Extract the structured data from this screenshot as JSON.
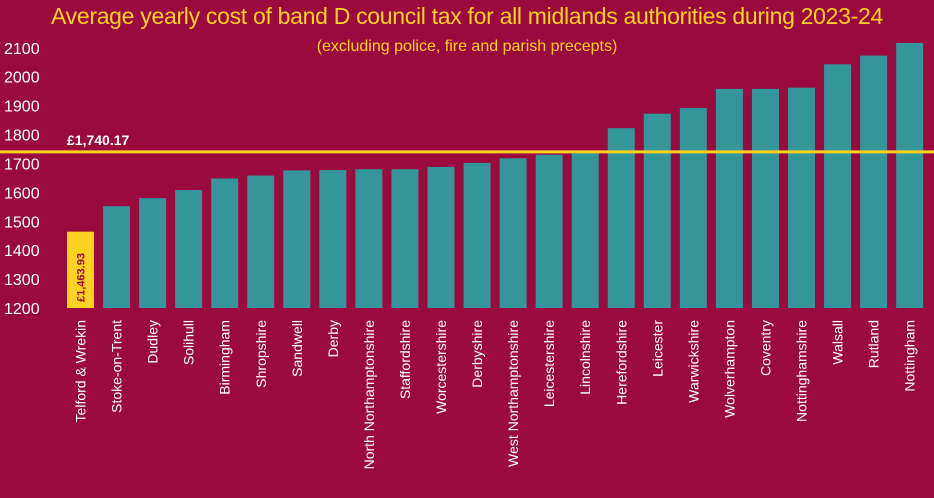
{
  "colors": {
    "background": "#9b0a3e",
    "bar": "#34959a",
    "highlight_bar": "#ffd21f",
    "average_line": "#ffd21f",
    "title": "#ffd21f",
    "text": "#ffffff"
  },
  "chart_data": {
    "type": "bar",
    "title": "Average yearly cost of band D council tax for all midlands authorities during 2023-24",
    "subtitle": "(excluding police, fire and parish precepts)",
    "xlabel": "",
    "ylabel": "",
    "ylim": [
      1200,
      2120
    ],
    "yticks": [
      1200,
      1300,
      1400,
      1500,
      1600,
      1700,
      1800,
      1900,
      2000,
      2100
    ],
    "grid": false,
    "categories": [
      "Telford & Wrekin",
      "Stoke-on-Trent",
      "Dudley",
      "Solihull",
      "Birmingham",
      "Shropshire",
      "Sandwell",
      "Derby",
      "North Northamptonshire",
      "Staffordshire",
      "Worcestershire",
      "Derbyshire",
      "West Northamptonshire",
      "Leicestershire",
      "Lincolnshire",
      "Herefordshire",
      "Leicester",
      "Warwickshire",
      "Wolverhampton",
      "Coventry",
      "Nottinghamshire",
      "Walsall",
      "Rutland",
      "Nottingham"
    ],
    "values": [
      1463.93,
      1552,
      1580,
      1608,
      1648,
      1658,
      1676,
      1677,
      1680,
      1680,
      1688,
      1702,
      1718,
      1730,
      1736,
      1822,
      1872,
      1892,
      1958,
      1958,
      1962,
      2043,
      2073,
      2117
    ],
    "highlight_index": 0,
    "highlight_label": "£1,463.93",
    "average": 1740.17,
    "average_label": "£1,740.17"
  }
}
